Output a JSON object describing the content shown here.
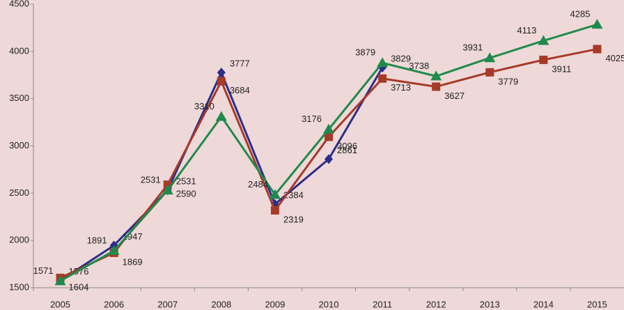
{
  "chart_data": {
    "type": "line",
    "categories": [
      "2005",
      "2006",
      "2007",
      "2008",
      "2009",
      "2010",
      "2011",
      "2012",
      "2013",
      "2014",
      "2015"
    ],
    "series": [
      {
        "color": "#2b2d8a",
        "marker": "diamond",
        "values": [
          1576,
          1947,
          2531,
          3777,
          2384,
          2861,
          3829,
          null,
          null,
          null,
          null
        ]
      },
      {
        "color": "#a53a28",
        "marker": "square",
        "values": [
          1604,
          1869,
          2590,
          3684,
          2319,
          3096,
          3713,
          3627,
          3779,
          3911,
          4025
        ]
      },
      {
        "color": "#1f8a4c",
        "marker": "triangle",
        "values": [
          1571,
          1891,
          2531,
          3310,
          2484,
          3176,
          3879,
          3738,
          3931,
          4113,
          4285
        ]
      }
    ],
    "ylim": [
      1500,
      4500
    ],
    "yticks": [
      1500,
      2000,
      2500,
      3000,
      3500,
      4000,
      4500
    ],
    "grid": false
  }
}
